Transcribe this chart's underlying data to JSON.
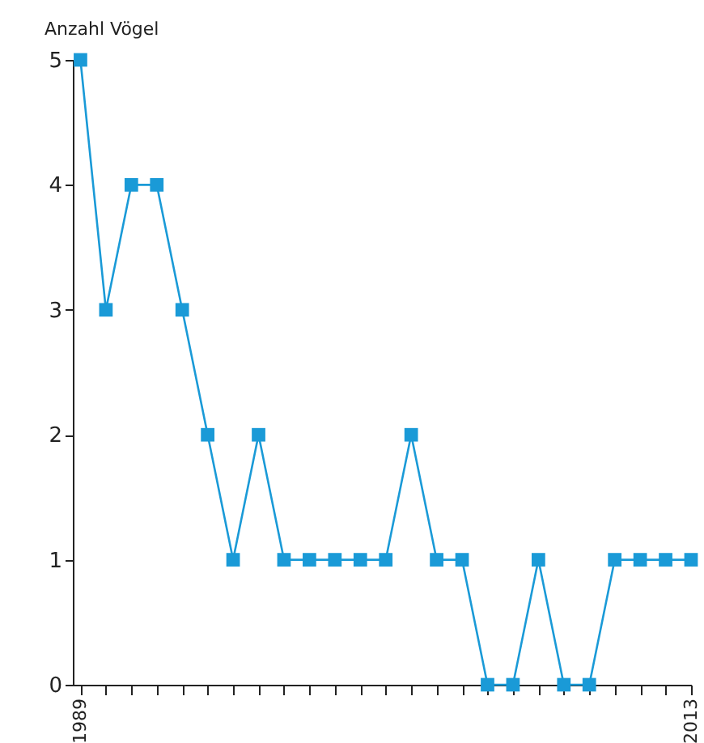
{
  "chart_data": {
    "type": "line",
    "ylabel": "Anzahl Vögel",
    "x": [
      1989,
      1990,
      1991,
      1992,
      1993,
      1994,
      1995,
      1996,
      1997,
      1998,
      1999,
      2000,
      2001,
      2002,
      2003,
      2004,
      2005,
      2006,
      2007,
      2008,
      2009,
      2010,
      2011,
      2012,
      2013
    ],
    "series": [
      {
        "color": "#1a9ad7",
        "values": [
          5,
          3,
          4,
          4,
          3,
          2,
          1,
          2,
          1,
          1,
          1,
          1,
          1,
          2,
          1,
          1,
          0,
          0,
          1,
          0,
          0,
          1,
          1,
          1,
          1
        ]
      }
    ],
    "xlim": [
      1988.7,
      2013
    ],
    "xticks": [
      1989,
      {
        "value": 1990,
        "label": null
      },
      {
        "value": 1991,
        "label": null
      },
      {
        "value": 1992,
        "label": null
      },
      {
        "value": 1993,
        "label": null
      },
      {
        "value": 1994,
        "label": null
      },
      {
        "value": 1995,
        "label": null
      },
      {
        "value": 1996,
        "label": null
      },
      {
        "value": 1997,
        "label": null
      },
      {
        "value": 1998,
        "label": null
      },
      {
        "value": 1999,
        "label": null
      },
      {
        "value": 2000,
        "label": null
      },
      {
        "value": 2001,
        "label": null
      },
      {
        "value": 2002,
        "label": null
      },
      {
        "value": 2003,
        "label": null
      },
      {
        "value": 2004,
        "label": null
      },
      {
        "value": 2005,
        "label": null
      },
      {
        "value": 2006,
        "label": null
      },
      {
        "value": 2007,
        "label": null
      },
      {
        "value": 2008,
        "label": null
      },
      {
        "value": 2009,
        "label": null
      },
      {
        "value": 2010,
        "label": null
      },
      {
        "value": 2011,
        "label": null
      },
      {
        "value": 2012,
        "label": null
      },
      2013
    ],
    "ylim": [
      0,
      5
    ],
    "yticks": [
      0,
      1,
      2,
      3,
      4,
      5
    ],
    "grid": false,
    "marker": "square",
    "line_style": "solid"
  }
}
